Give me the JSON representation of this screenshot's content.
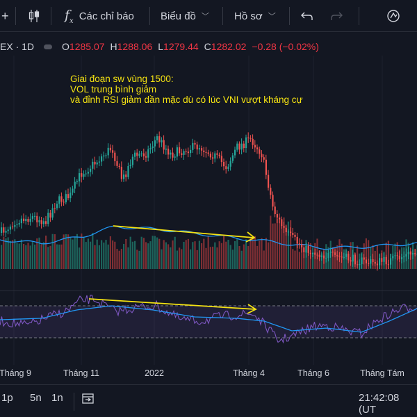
{
  "toolbar": {
    "add_label": "+",
    "indicators_label": "Các chỉ báo",
    "layouts_label": "Biểu đồ",
    "profile_label": "Hồ sơ",
    "fx_label": "f"
  },
  "legend": {
    "symbol": "EX · 1D",
    "open_key": "O",
    "open": "1285.07",
    "high_key": "H",
    "high": "1288.06",
    "low_key": "L",
    "low": "1279.44",
    "close_key": "C",
    "close": "1282.02",
    "change": "−0.28 (−0.02%)"
  },
  "annotation": {
    "line1": "Giai đoạn sw vùng 1500:",
    "line2": "VOL trung bình giảm",
    "line3": "và đỉnh RSI giảm dần mặc dù có lúc VNI vượt kháng cự"
  },
  "xaxis": {
    "labels": [
      "Tháng 9",
      "Tháng 11",
      "2022",
      "Tháng 4",
      "Tháng 6",
      "Tháng Tám"
    ]
  },
  "bottombar": {
    "ranges": [
      "1p",
      "5n",
      "1n"
    ],
    "time": "21:42:08 (UT"
  },
  "colors": {
    "background": "#131722",
    "up": "#26a69a",
    "down": "#ef5350",
    "volume_ma": "#2196f3",
    "rsi": "#7e57c2",
    "rsi_ma": "#2196f3",
    "annotation": "#f5e312"
  },
  "icons": {
    "candles": "candlestick-icon",
    "fx": "fx-indicator-icon",
    "undo": "undo-icon",
    "redo": "redo-icon",
    "snapshot": "camera-icon",
    "replay": "replay-icon"
  }
}
